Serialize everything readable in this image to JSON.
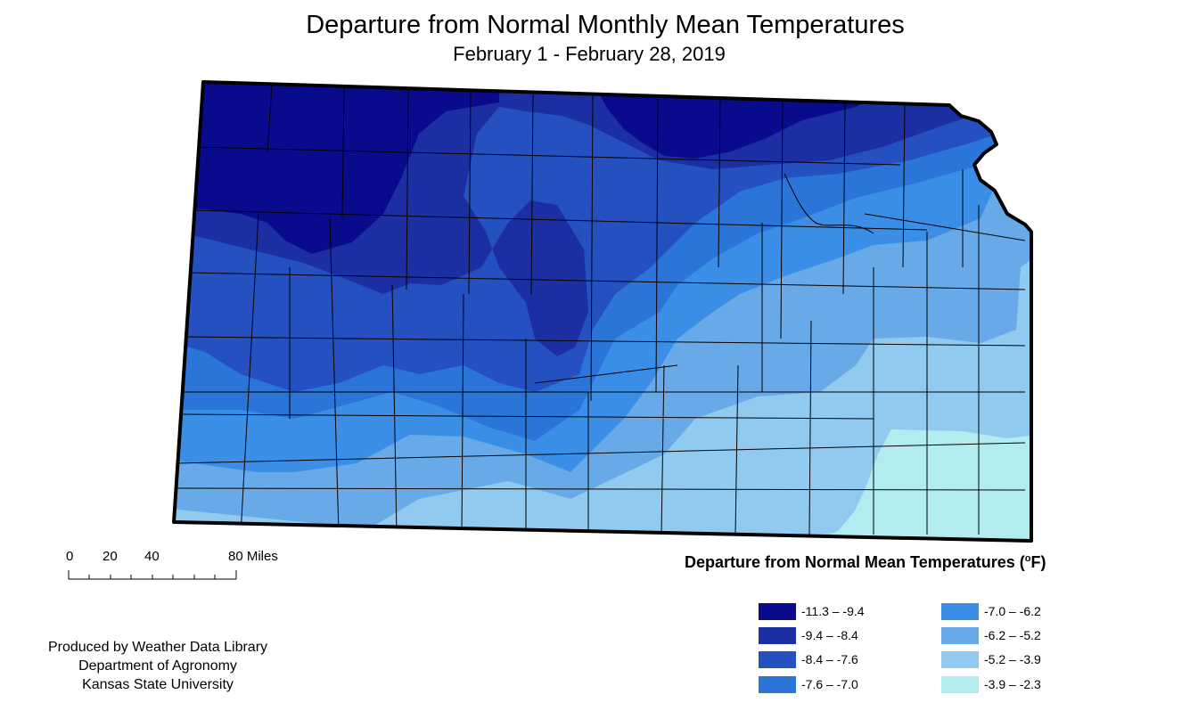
{
  "title": "Departure from Normal Monthly Mean Temperatures",
  "subtitle": "February 1 - February 28, 2019",
  "scale_bar": {
    "labels": [
      "0",
      "20",
      "40",
      "80 Miles"
    ]
  },
  "credit": {
    "line1": "Produced by Weather Data Library",
    "line2": "Department of Agronomy",
    "line3": "Kansas State University"
  },
  "legend": {
    "title": "Departure from Normal Mean Temperatures (",
    "unit_sup": "o",
    "unit_tail": "F)",
    "items": [
      {
        "label": "-11.3 – -9.4",
        "color": "#0a0a8c"
      },
      {
        "label": "-9.4 – -8.4",
        "color": "#1b2fa2"
      },
      {
        "label": "-8.4 – -7.6",
        "color": "#2550c0"
      },
      {
        "label": "-7.6 – -7.0",
        "color": "#2b74d8"
      },
      {
        "label": "-7.0 – -6.2",
        "color": "#3b8ee6"
      },
      {
        "label": "-6.2 – -5.2",
        "color": "#68aae8"
      },
      {
        "label": "-5.2 – -3.9",
        "color": "#90caee"
      },
      {
        "label": "-3.9 – -2.3",
        "color": "#b2ecee"
      }
    ]
  }
}
